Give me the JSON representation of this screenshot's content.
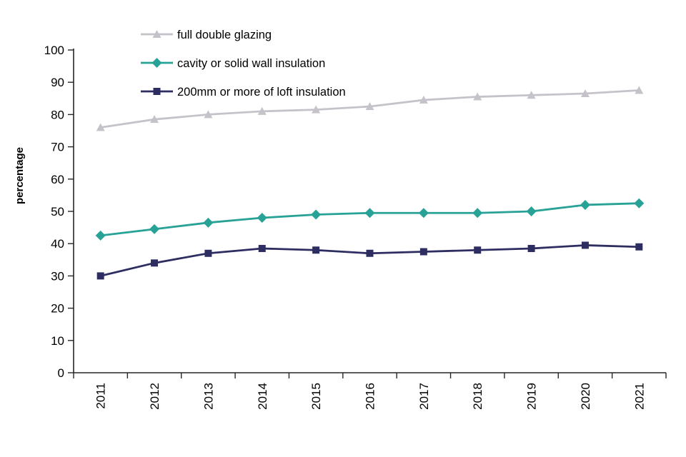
{
  "chart_data": {
    "type": "line",
    "title": "",
    "xlabel": "",
    "ylabel": "percentage",
    "ylim": [
      0,
      100
    ],
    "ytick_step": 10,
    "grid": false,
    "legend_position": "top-left-inside",
    "categories": [
      "2011",
      "2012",
      "2013",
      "2014",
      "2015",
      "2016",
      "2017",
      "2018",
      "2019",
      "2020",
      "2021"
    ],
    "series": [
      {
        "name": "full double glazing",
        "marker": "triangle",
        "color": "#c5c3c9",
        "values": [
          76,
          78.5,
          80,
          81,
          81.5,
          82.5,
          84.5,
          85.5,
          86,
          86.5,
          87.5
        ]
      },
      {
        "name": "cavity or solid wall insulation",
        "marker": "diamond",
        "color": "#28a197",
        "values": [
          42.5,
          44.5,
          46.5,
          48,
          49,
          49.5,
          49.5,
          49.5,
          50,
          52,
          52.5
        ]
      },
      {
        "name": "200mm or more of loft insulation",
        "marker": "square",
        "color": "#2e2d62",
        "values": [
          30,
          34,
          37,
          38.5,
          38,
          37,
          37.5,
          38,
          38.5,
          39.5,
          39
        ]
      }
    ]
  }
}
